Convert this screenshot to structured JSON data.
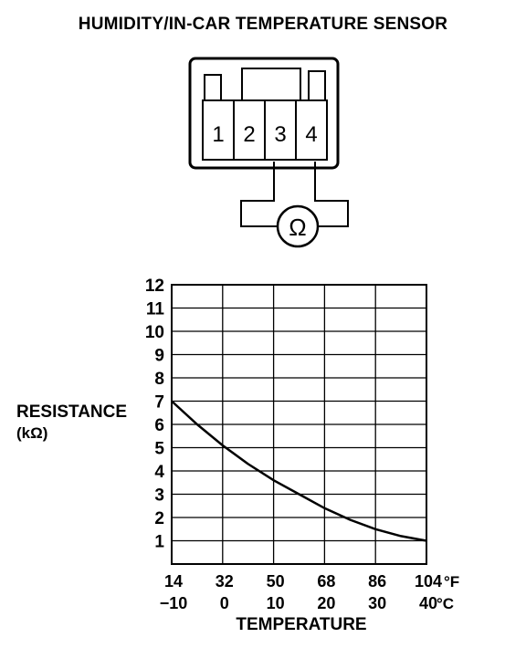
{
  "page_title": "HUMIDITY/IN-CAR TEMPERATURE SENSOR",
  "connector": {
    "pins": [
      "1",
      "2",
      "3",
      "4"
    ],
    "meter_symbol": "Ω",
    "meter_icon": "ohmmeter-icon",
    "measured_pins": [
      "3",
      "4"
    ]
  },
  "chart_data": {
    "type": "line",
    "title": "",
    "ylabel_line1": "RESISTANCE",
    "ylabel_line2": "(kΩ)",
    "xlabel": "TEMPERATURE",
    "x_unit_f": "°F",
    "x_unit_c": "°C",
    "x_ticks_f": [
      "14",
      "32",
      "50",
      "68",
      "86",
      "104"
    ],
    "x_ticks_c": [
      "−10",
      "0",
      "10",
      "20",
      "30",
      "40"
    ],
    "y_ticks": [
      "12",
      "11",
      "10",
      "9",
      "8",
      "7",
      "6",
      "5",
      "4",
      "3",
      "2",
      "1"
    ],
    "xlim_c": [
      -10,
      40
    ],
    "ylim": [
      0,
      12
    ],
    "grid": true,
    "series": [
      {
        "x": [
          -10,
          -5,
          0,
          5,
          10,
          15,
          20,
          25,
          30,
          35,
          40
        ],
        "y": [
          7.0,
          6.0,
          5.1,
          4.3,
          3.6,
          3.0,
          2.4,
          1.9,
          1.5,
          1.2,
          1.0
        ]
      }
    ]
  }
}
